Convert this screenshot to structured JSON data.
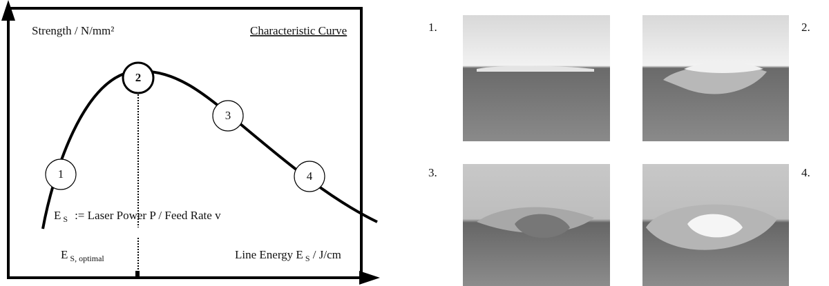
{
  "diagram": {
    "y_axis_label": "Strength / N/mm²",
    "title": "Characteristic Curve",
    "points": [
      "1",
      "2",
      "3",
      "4"
    ],
    "formula": {
      "symbol": "E",
      "subscript": "S",
      "text": ":=  Laser Power P / Feed Rate v"
    },
    "optimal_label": {
      "symbol": "E",
      "subscript": "S, optimal"
    },
    "x_axis_label": {
      "text": "Line Energy E",
      "subscript": "S",
      "unit": " / J/cm"
    }
  },
  "photos": {
    "labels": [
      "1.",
      "2.",
      "3.",
      "4."
    ]
  }
}
